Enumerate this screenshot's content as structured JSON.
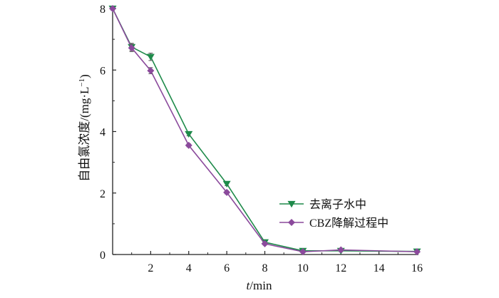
{
  "chart_data": {
    "type": "line",
    "x": [
      0,
      1,
      2,
      4,
      6,
      8,
      10,
      12,
      16
    ],
    "series": [
      {
        "name": "去离子水中",
        "color": "#1e8a4a",
        "marker": "triangle-down",
        "values": [
          8.0,
          6.75,
          6.43,
          3.92,
          2.3,
          0.4,
          0.12,
          0.12,
          0.1
        ],
        "errors": [
          0.05,
          0.12,
          0.12,
          0.06,
          0.06,
          0.05,
          0.03,
          0.03,
          0.03
        ]
      },
      {
        "name": "CBZ降解过程中",
        "color": "#8b4a9c",
        "marker": "diamond",
        "values": [
          8.0,
          6.72,
          5.98,
          3.55,
          2.02,
          0.35,
          0.09,
          0.15,
          0.09
        ],
        "errors": [
          0.05,
          0.12,
          0.1,
          0.05,
          0.05,
          0.04,
          0.03,
          0.03,
          0.03
        ]
      }
    ],
    "xlabel": {
      "italic": "t",
      "text": "/min"
    },
    "ylabel": {
      "text": "自由氯浓度/(mg·L",
      "sup": "−1",
      "close": ")"
    },
    "xlim": [
      0,
      16
    ],
    "ylim": [
      0,
      8
    ],
    "xticks": [
      "2",
      "4",
      "6",
      "8",
      "10",
      "12",
      "14",
      "16"
    ],
    "xtick_values": [
      2,
      4,
      6,
      8,
      10,
      12,
      14,
      16
    ],
    "yticks": [
      "0",
      "2",
      "4",
      "6",
      "8"
    ],
    "ytick_values": [
      0,
      2,
      4,
      6,
      8
    ],
    "grid": false,
    "legend_position": "right"
  }
}
